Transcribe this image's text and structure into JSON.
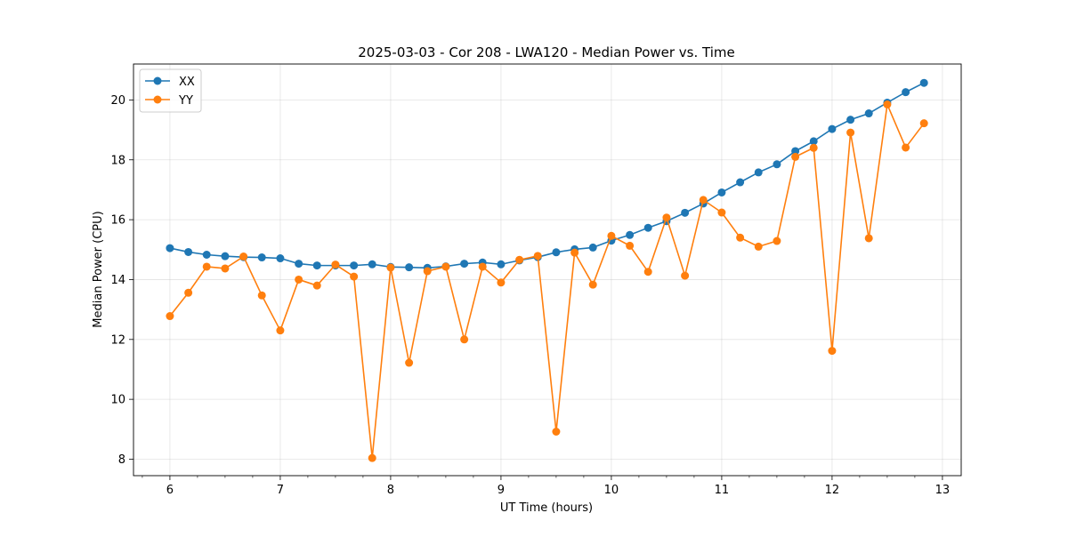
{
  "chart_data": {
    "type": "line",
    "title": "2025-03-03 - Cor 208 - LWA120 - Median Power vs. Time",
    "xlabel": "UT Time (hours)",
    "ylabel": "Median Power (CPU)",
    "xlim": [
      5.67,
      13.17
    ],
    "ylim": [
      7.45,
      21.2
    ],
    "x_ticks": [
      6,
      7,
      8,
      9,
      10,
      11,
      12,
      13
    ],
    "x_tick_labels": [
      "6",
      "7",
      "8",
      "9",
      "10",
      "11",
      "12",
      "13"
    ],
    "x_minor_tick_step": 0.25,
    "y_ticks": [
      8,
      10,
      12,
      14,
      16,
      18,
      20
    ],
    "y_tick_labels": [
      "8",
      "10",
      "12",
      "14",
      "16",
      "18",
      "20"
    ],
    "grid": true,
    "legend_position": "top-left",
    "series": [
      {
        "name": "XX",
        "color": "#1f77b4",
        "x": [
          6.0,
          6.167,
          6.333,
          6.5,
          6.667,
          6.833,
          7.0,
          7.167,
          7.333,
          7.5,
          7.667,
          7.833,
          8.0,
          8.167,
          8.333,
          8.5,
          8.667,
          8.833,
          9.0,
          9.167,
          9.333,
          9.5,
          9.667,
          9.833,
          10.0,
          10.167,
          10.333,
          10.5,
          10.667,
          10.833,
          11.0,
          11.167,
          11.333,
          11.5,
          11.667,
          11.833,
          12.0,
          12.167,
          12.333,
          12.5,
          12.667,
          12.833
        ],
        "values": [
          15.05,
          14.92,
          14.83,
          14.78,
          14.75,
          14.74,
          14.71,
          14.53,
          14.47,
          14.47,
          14.47,
          14.51,
          14.42,
          14.41,
          14.39,
          14.44,
          14.53,
          14.57,
          14.51,
          14.64,
          14.75,
          14.91,
          15.01,
          15.07,
          15.3,
          15.49,
          15.73,
          15.95,
          16.23,
          16.54,
          16.91,
          17.25,
          17.58,
          17.85,
          18.29,
          18.62,
          19.03,
          19.34,
          19.55,
          19.91,
          20.26,
          20.57
        ]
      },
      {
        "name": "YY",
        "color": "#ff7f0e",
        "x": [
          6.0,
          6.167,
          6.333,
          6.5,
          6.667,
          6.833,
          7.0,
          7.167,
          7.333,
          7.5,
          7.667,
          7.833,
          8.0,
          8.167,
          8.333,
          8.5,
          8.667,
          8.833,
          9.0,
          9.167,
          9.333,
          9.5,
          9.667,
          9.833,
          10.0,
          10.167,
          10.333,
          10.5,
          10.667,
          10.833,
          11.0,
          11.167,
          11.333,
          11.5,
          11.667,
          11.833,
          12.0,
          12.167,
          12.333,
          12.5,
          12.667,
          12.833
        ],
        "values": [
          12.78,
          13.56,
          14.43,
          14.37,
          14.77,
          13.47,
          12.3,
          14.0,
          13.8,
          14.5,
          14.1,
          8.04,
          14.4,
          11.22,
          14.28,
          14.43,
          12.0,
          14.43,
          13.9,
          14.66,
          14.79,
          8.92,
          14.9,
          13.83,
          15.46,
          15.13,
          14.26,
          16.07,
          14.13,
          16.66,
          16.24,
          15.4,
          15.1,
          15.29,
          18.1,
          18.4,
          11.62,
          18.91,
          15.38,
          19.85,
          18.41,
          19.22
        ]
      }
    ]
  }
}
